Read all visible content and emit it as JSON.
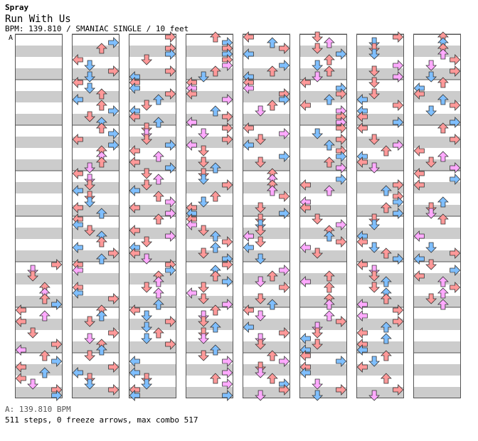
{
  "song": {
    "artist": "Spray",
    "title": "Run With Us",
    "info": "BPM: 139.810 / SMANIAC SINGLE / 10 feet"
  },
  "lane_marker": "A",
  "footer": {
    "bpm": "A: 139.810 BPM",
    "stats": "511 steps, 0 freeze arrows, max combo 517"
  },
  "colors": {
    "quarter": "#ff9999",
    "eighth": "#7fbfff",
    "sixteenth": "#ffaaff",
    "stripe": "#cccccc",
    "border": "#555555"
  },
  "chart": {
    "columns": 8,
    "measures_per_column": 8,
    "seed": 517,
    "empty_measures": {
      "0": [
        0,
        1,
        2,
        3,
        4
      ],
      "7": [
        6,
        7
      ]
    }
  }
}
